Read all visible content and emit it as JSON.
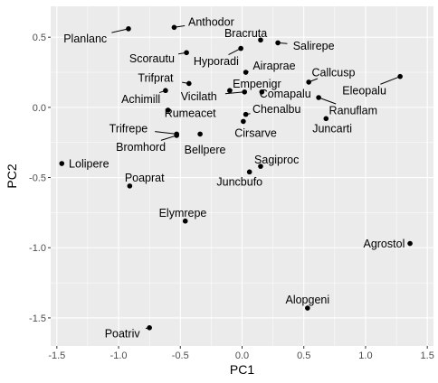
{
  "chart_data": {
    "type": "scatter",
    "xlabel": "PC1",
    "ylabel": "PC2",
    "xlim": [
      -1.55,
      1.55
    ],
    "ylim": [
      -1.7,
      0.72
    ],
    "x_ticks": [
      -1.5,
      -1.0,
      -0.5,
      0.0,
      0.5,
      1.0,
      1.5
    ],
    "x_tick_labels": [
      "-1.5",
      "-1.0",
      "-0.5",
      "0.0",
      "0.5",
      "1.0",
      "1.5"
    ],
    "y_ticks": [
      -1.5,
      -1.0,
      -0.5,
      0.0,
      0.5
    ],
    "y_tick_labels": [
      "-1.5",
      "-1.0",
      "-0.5",
      "0.0",
      "0.5"
    ],
    "grid": true,
    "background_color": "#ebebeb",
    "grid_color": "#ffffff",
    "point_color": "#000000",
    "points": [
      {
        "label": "Planlanc",
        "x": -0.92,
        "y": 0.56,
        "lx": -1.27,
        "ly": 0.49
      },
      {
        "label": "Anthodor",
        "x": -0.55,
        "y": 0.57,
        "lx": -0.25,
        "ly": 0.61
      },
      {
        "label": "Bracruta",
        "x": 0.15,
        "y": 0.48,
        "lx": 0.03,
        "ly": 0.53
      },
      {
        "label": "Salirepe",
        "x": 0.29,
        "y": 0.46,
        "lx": 0.58,
        "ly": 0.44
      },
      {
        "label": "Scorautu",
        "x": -0.45,
        "y": 0.39,
        "lx": -0.73,
        "ly": 0.35
      },
      {
        "label": "Hyporadi",
        "x": -0.01,
        "y": 0.42,
        "lx": -0.21,
        "ly": 0.33
      },
      {
        "label": "Airaprae",
        "x": 0.03,
        "y": 0.25,
        "lx": 0.26,
        "ly": 0.3
      },
      {
        "label": "Callcusp",
        "x": 0.54,
        "y": 0.18,
        "lx": 0.74,
        "ly": 0.25
      },
      {
        "label": "Trifprat",
        "x": -0.43,
        "y": 0.17,
        "lx": -0.7,
        "ly": 0.21
      },
      {
        "label": "Empenigr",
        "x": -0.1,
        "y": 0.12,
        "lx": 0.12,
        "ly": 0.17
      },
      {
        "label": "Eleopalu",
        "x": 1.28,
        "y": 0.22,
        "lx": 0.99,
        "ly": 0.12
      },
      {
        "label": "Vicilath",
        "x": 0.02,
        "y": 0.11,
        "lx": -0.35,
        "ly": 0.08
      },
      {
        "label": "Comapalu",
        "x": 0.16,
        "y": 0.11,
        "lx": 0.35,
        "ly": 0.1
      },
      {
        "label": "Achimill",
        "x": -0.62,
        "y": 0.12,
        "lx": -0.82,
        "ly": 0.06
      },
      {
        "label": "Ranuflam",
        "x": 0.62,
        "y": 0.07,
        "lx": 0.9,
        "ly": -0.02
      },
      {
        "label": "Chenalbu",
        "x": 0.03,
        "y": -0.05,
        "lx": 0.28,
        "ly": -0.01
      },
      {
        "label": "Rumeacet",
        "x": -0.6,
        "y": -0.02,
        "lx": -0.42,
        "ly": -0.04
      },
      {
        "label": "Juncarti",
        "x": 0.68,
        "y": -0.08,
        "lx": 0.73,
        "ly": -0.15
      },
      {
        "label": "Trifrepe",
        "x": -0.53,
        "y": -0.19,
        "lx": -0.92,
        "ly": -0.15
      },
      {
        "label": "Cirsarve",
        "x": 0.01,
        "y": -0.1,
        "lx": 0.11,
        "ly": -0.18
      },
      {
        "label": "Bromhord",
        "x": -0.53,
        "y": -0.2,
        "lx": -0.82,
        "ly": -0.28
      },
      {
        "label": "Bellpere",
        "x": -0.34,
        "y": -0.19,
        "lx": -0.3,
        "ly": -0.3
      },
      {
        "label": "Sagiproc",
        "x": 0.15,
        "y": -0.42,
        "lx": 0.28,
        "ly": -0.37
      },
      {
        "label": "Lolipere",
        "x": -1.46,
        "y": -0.4,
        "lx": -1.24,
        "ly": -0.4
      },
      {
        "label": "Juncbufo",
        "x": 0.06,
        "y": -0.46,
        "lx": -0.02,
        "ly": -0.53
      },
      {
        "label": "Poaprat",
        "x": -0.91,
        "y": -0.56,
        "lx": -0.79,
        "ly": -0.5
      },
      {
        "label": "Elymrepe",
        "x": -0.46,
        "y": -0.81,
        "lx": -0.48,
        "ly": -0.75
      },
      {
        "label": "Agrostol",
        "x": 1.36,
        "y": -0.97,
        "lx": 1.15,
        "ly": -0.97
      },
      {
        "label": "Alopgeni",
        "x": 0.53,
        "y": -1.43,
        "lx": 0.53,
        "ly": -1.37
      },
      {
        "label": "Poatriv",
        "x": -0.75,
        "y": -1.57,
        "lx": -0.97,
        "ly": -1.61
      }
    ]
  }
}
